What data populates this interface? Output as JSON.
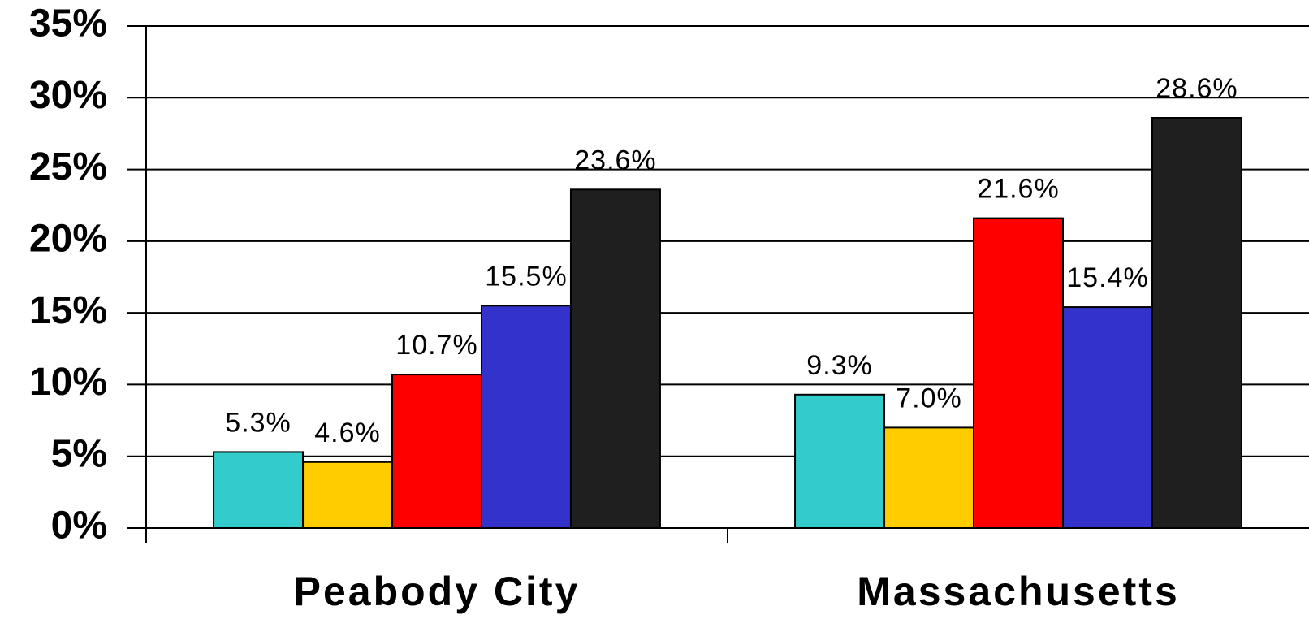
{
  "chart_data": {
    "type": "bar",
    "categories": [
      "Peabody City",
      "Massachusetts"
    ],
    "series": [
      {
        "color": "#33cccc",
        "values": [
          5.3,
          9.3
        ],
        "value_labels": [
          "5.3%",
          "9.3%"
        ]
      },
      {
        "color": "#ffcc00",
        "values": [
          4.6,
          7.0
        ],
        "value_labels": [
          "4.6%",
          "7.0%"
        ]
      },
      {
        "color": "#ff0000",
        "values": [
          10.7,
          21.6
        ],
        "value_labels": [
          "10.7%",
          "21.6%"
        ]
      },
      {
        "color": "#3333cc",
        "values": [
          15.5,
          15.4
        ],
        "value_labels": [
          "15.5%",
          "15.4%"
        ]
      },
      {
        "color": "#1f1f1f",
        "values": [
          23.6,
          28.6
        ],
        "value_labels": [
          "23.6%",
          "28.6%"
        ]
      }
    ],
    "ylim": [
      0,
      35
    ],
    "yticks": [
      {
        "value": 0,
        "label": "0%"
      },
      {
        "value": 5,
        "label": "5%"
      },
      {
        "value": 10,
        "label": "10%"
      },
      {
        "value": 15,
        "label": "15%"
      },
      {
        "value": 20,
        "label": "20%"
      },
      {
        "value": 25,
        "label": "25%"
      },
      {
        "value": 30,
        "label": "30%"
      },
      {
        "value": 35,
        "label": "35%"
      }
    ],
    "grid": true
  }
}
